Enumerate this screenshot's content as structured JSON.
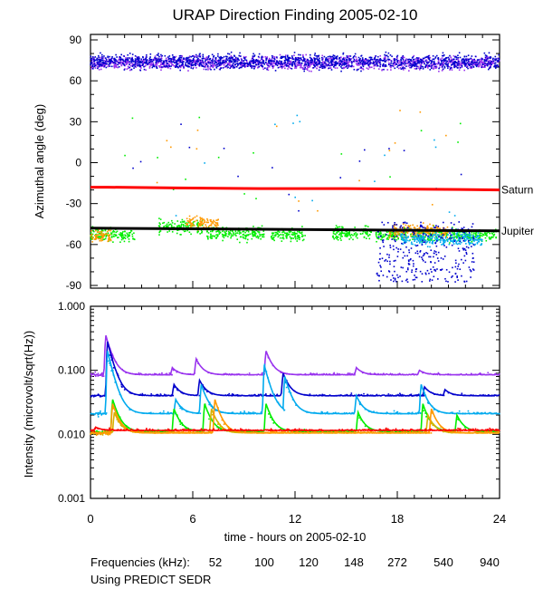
{
  "title": "URAP Direction Finding  2005-02-10",
  "xlabel": "time - hours on 2005-02-10",
  "footer": {
    "freq_label": "Frequencies (kHz):",
    "source_note": "Using PREDICT SEDR"
  },
  "colors": {
    "52": "#ff0000",
    "100": "#ff9900",
    "120": "#d4b200",
    "148": "#00ee00",
    "272": "#00aaee",
    "540": "#0000cc",
    "940": "#9933ee",
    "planet_line": "#000000"
  },
  "chart_data": [
    {
      "type": "scatter",
      "title": "URAP Direction Finding  2005-02-10",
      "xlabel": "time - hours on 2005-02-10",
      "ylabel": "Azimuthal angle (deg)",
      "xlim": [
        0,
        24
      ],
      "ylim": [
        -92,
        94
      ],
      "xticks": [
        0,
        6,
        12,
        18,
        24
      ],
      "yticks": [
        90,
        60,
        30,
        0,
        -30,
        -60,
        -90
      ],
      "reference_lines": [
        {
          "name": "Saturn",
          "color": "#ff0000",
          "x": [
            0,
            1,
            5,
            10,
            15,
            20,
            24
          ],
          "y": [
            -18,
            -18,
            -18.5,
            -19,
            -19,
            -19.5,
            -20
          ]
        },
        {
          "name": "Jupiter",
          "color": "#000000",
          "x": [
            0,
            6,
            12,
            18,
            24
          ],
          "y": [
            -48,
            -48.5,
            -49,
            -49.5,
            -50
          ]
        }
      ],
      "series": [
        {
          "name": "940",
          "color": "#9933ee",
          "x_range": [
            0,
            24
          ],
          "center": 73,
          "spread": 7
        },
        {
          "name": "540",
          "color": "#0000cc",
          "x_range": [
            0,
            24
          ],
          "center": 74,
          "spread": 8
        },
        {
          "name": "148",
          "color": "#00ee00",
          "clusters": [
            {
              "x": [
                0,
                2.6
              ],
              "center": -53
            },
            {
              "x": [
                4.0,
                6.6
              ],
              "center": -47
            },
            {
              "x": [
                6.8,
                10.2
              ],
              "center": -52
            },
            {
              "x": [
                10.6,
                12.6
              ],
              "center": -53
            },
            {
              "x": [
                14.2,
                16.5
              ],
              "center": -52
            },
            {
              "x": [
                16.7,
                23.8
              ],
              "center": -53
            }
          ]
        },
        {
          "name": "100",
          "color": "#ff9900",
          "clusters": [
            {
              "x": [
                0,
                1.2
              ],
              "center": -53
            },
            {
              "x": [
                5.6,
                7.5
              ],
              "center": -44
            },
            {
              "x": [
                17.5,
                21
              ],
              "center": -50
            }
          ]
        },
        {
          "name": "272",
          "color": "#00aaee",
          "clusters": [
            {
              "x": [
                18.2,
                23
              ],
              "center": -56
            }
          ]
        },
        {
          "name": "540_low",
          "color": "#0000cc",
          "clusters": [
            {
              "x": [
                16.8,
                22.5
              ],
              "center": -70
            }
          ]
        }
      ]
    },
    {
      "type": "line",
      "ylabel": "Intensity (microvolt/sqrt(Hz))",
      "xlim": [
        0,
        24
      ],
      "yscale": "log",
      "ylim": [
        0.001,
        1.0
      ],
      "xticks": [
        0,
        6,
        12,
        18,
        24
      ],
      "xtick_labels": [
        "0",
        "6",
        "12",
        "18",
        "24"
      ],
      "yticks": [
        1.0,
        0.1,
        0.01,
        0.001
      ],
      "ytick_labels": [
        "1.000",
        "0.100",
        "0.010",
        "0.001"
      ],
      "legend": [
        {
          "label": "52",
          "color": "#ff0000"
        },
        {
          "label": "100",
          "color": "#ff9900"
        },
        {
          "label": "120",
          "color": "#d4b200"
        },
        {
          "label": "148",
          "color": "#00ee00"
        },
        {
          "label": "272",
          "color": "#00aaee"
        },
        {
          "label": "540",
          "color": "#0000cc"
        },
        {
          "label": "940",
          "color": "#9933ee"
        }
      ],
      "series": [
        {
          "name": "940",
          "color": "#9933ee",
          "baseline": 0.085,
          "spikes": [
            [
              0.9,
              0.35
            ],
            [
              4.8,
              0.11
            ],
            [
              6.2,
              0.15
            ],
            [
              10.3,
              0.2
            ],
            [
              15.6,
              0.11
            ],
            [
              19.3,
              0.1
            ]
          ]
        },
        {
          "name": "540",
          "color": "#0000cc",
          "baseline": 0.04,
          "spikes": [
            [
              1.0,
              0.28
            ],
            [
              4.9,
              0.06
            ],
            [
              6.4,
              0.07
            ],
            [
              11.3,
              0.09
            ],
            [
              19.6,
              0.055
            ],
            [
              20.8,
              0.05
            ]
          ]
        },
        {
          "name": "272",
          "color": "#00aaee",
          "baseline": 0.021,
          "spikes": [
            [
              1.0,
              0.2
            ],
            [
              5.0,
              0.035
            ],
            [
              6.5,
              0.06
            ],
            [
              10.2,
              0.12
            ],
            [
              11.4,
              0.08
            ],
            [
              15.6,
              0.04
            ],
            [
              19.4,
              0.06
            ]
          ]
        },
        {
          "name": "148",
          "color": "#00ee00",
          "baseline": 0.011,
          "spikes": [
            [
              1.3,
              0.035
            ],
            [
              4.9,
              0.025
            ],
            [
              6.7,
              0.03
            ],
            [
              10.3,
              0.03
            ],
            [
              15.7,
              0.022
            ],
            [
              19.5,
              0.03
            ],
            [
              21.5,
              0.02
            ]
          ]
        },
        {
          "name": "120",
          "color": "#d4b200",
          "baseline": 0.0105,
          "spikes": [
            [
              1.4,
              0.022
            ],
            [
              7.1,
              0.025
            ],
            [
              19.8,
              0.02
            ]
          ]
        },
        {
          "name": "100",
          "color": "#ff9900",
          "baseline": 0.0105,
          "spikes": [
            [
              1.3,
              0.03
            ],
            [
              7.3,
              0.035
            ],
            [
              20.0,
              0.025
            ]
          ]
        },
        {
          "name": "52",
          "color": "#ff0000",
          "baseline": 0.0115,
          "spikes": [
            [
              0.3,
              0.013
            ]
          ]
        }
      ]
    }
  ]
}
